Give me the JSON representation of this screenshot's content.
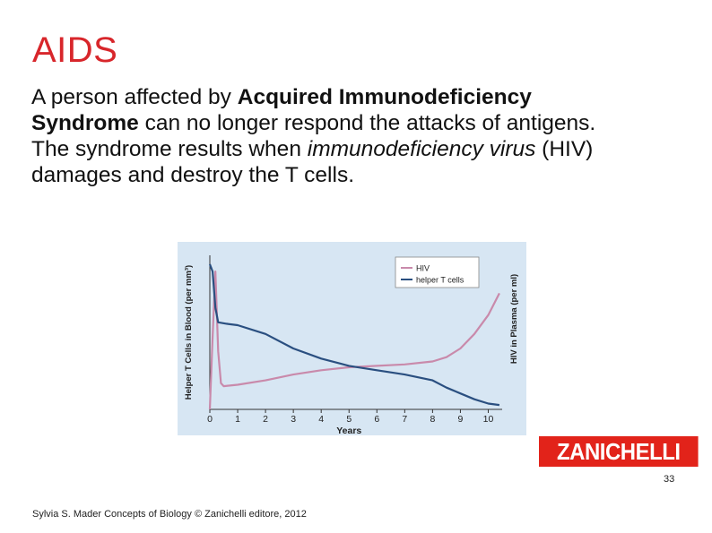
{
  "slide": {
    "title": "AIDS",
    "paragraph1": {
      "pre": "A person affected by ",
      "bold1": "Acquired Immunodeficiency",
      "bold2": "Syndrome",
      "post": " can no longer respond the attacks of antigens."
    },
    "paragraph2": {
      "pre": "The syndrome results when ",
      "italic": "immunodeficiency virus",
      "post": " (HIV) damages and destroy the T cells."
    },
    "brand": "ZANICHELLI",
    "page_number": "33",
    "footer": "Sylvia S. Mader Concepts of Biology © Zanichelli editore, 2012"
  },
  "colors": {
    "title": "#d8262b",
    "hiv": "#c98aab",
    "helper_t_cells": "#2a4f80",
    "figure_bg": "#d7e6f3",
    "brand_bg": "#e2231a"
  },
  "chart_data": {
    "type": "line",
    "xlabel": "Years",
    "ylabel_left": "Helper T Cells in Blood (per mm³)",
    "ylabel_right": "HIV in Plasma (per ml)",
    "x_ticks": [
      "0",
      "1",
      "2",
      "3",
      "4",
      "5",
      "6",
      "7",
      "8",
      "9",
      "10"
    ],
    "xlim": [
      0,
      10.5
    ],
    "ylim": [
      0,
      100
    ],
    "legend_position": "top-right",
    "grid": false,
    "series": [
      {
        "name": "HIV",
        "x": [
          0,
          0.1,
          0.2,
          0.3,
          0.4,
          0.5,
          1,
          2,
          3,
          4,
          5,
          6,
          7,
          8,
          8.5,
          9,
          9.5,
          10,
          10.4
        ],
        "y": [
          0,
          50,
          95,
          40,
          18,
          16,
          17,
          20,
          24,
          27,
          29,
          30,
          31,
          33,
          36,
          42,
          52,
          65,
          80
        ]
      },
      {
        "name": "helper T cells",
        "x": [
          0,
          0.1,
          0.2,
          0.3,
          0.6,
          1,
          2,
          3,
          4,
          5,
          6,
          7,
          8,
          8.5,
          9,
          9.5,
          10,
          10.4
        ],
        "y": [
          100,
          95,
          70,
          60,
          59,
          58,
          52,
          42,
          35,
          30,
          27,
          24,
          20,
          15,
          11,
          7,
          4,
          3
        ]
      }
    ]
  }
}
